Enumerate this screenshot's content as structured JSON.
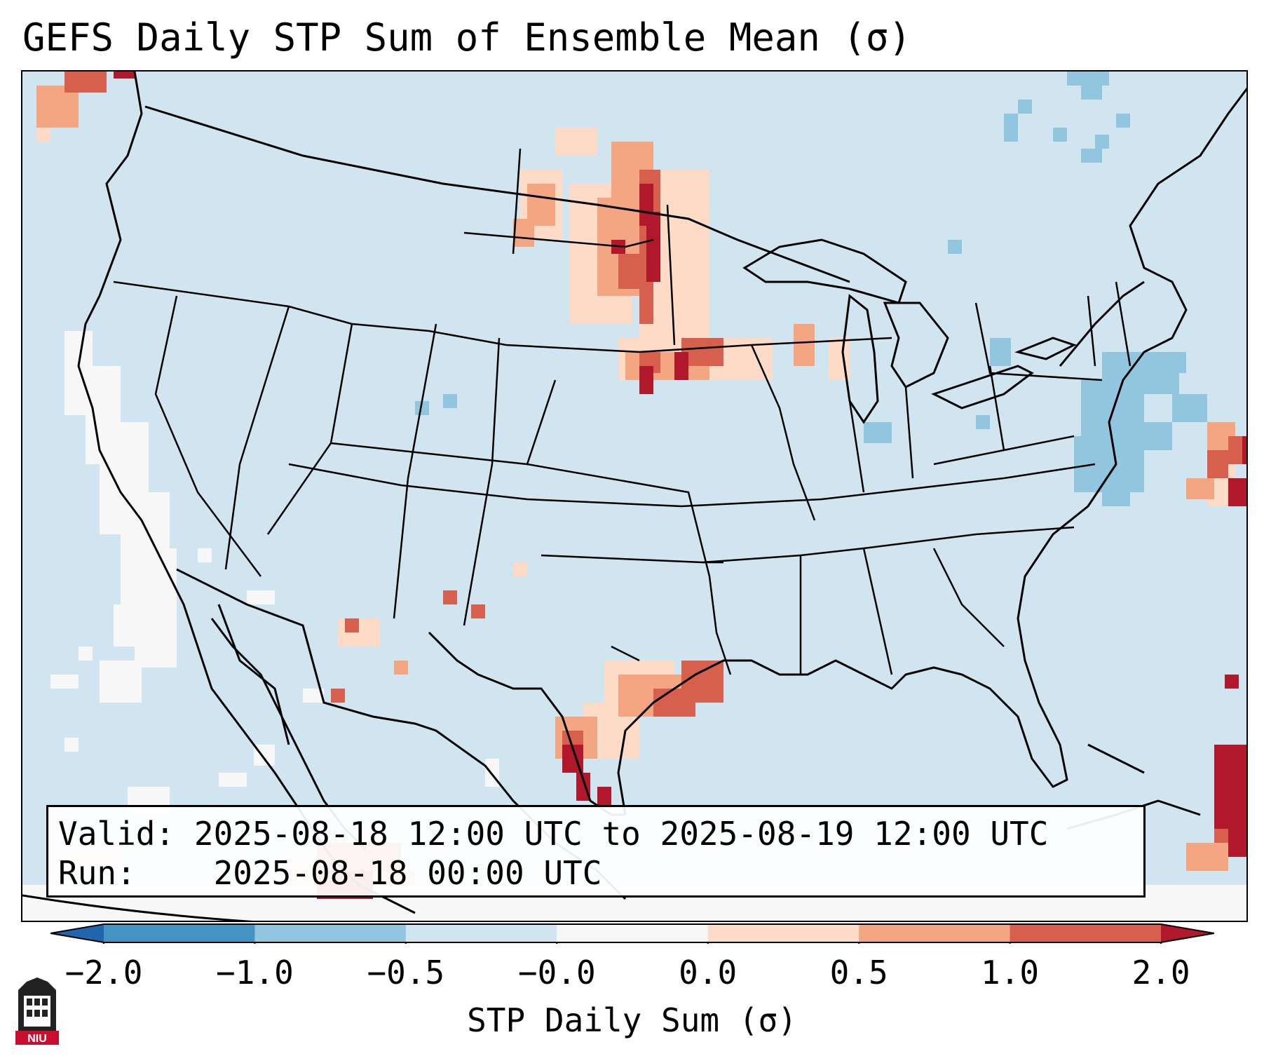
{
  "title": "GEFS Daily STP Sum of Ensemble Mean (σ)",
  "info": {
    "valid_label": "Valid:",
    "valid_text": "2025-08-18 12:00 UTC to 2025-08-19 12:00 UTC",
    "run_label": "Run:",
    "run_text": "2025-08-18 00:00 UTC"
  },
  "colorbar": {
    "label": "STP Daily Sum (σ)",
    "ticks": [
      "−2.0",
      "−1.0",
      "−0.5",
      "−0.0",
      "0.0",
      "0.5",
      "1.0",
      "2.0"
    ],
    "colors": [
      "#2166ac",
      "#4393c3",
      "#92c5de",
      "#d1e5f0",
      "#f7f7f7",
      "#fddbc7",
      "#f4a582",
      "#d6604d",
      "#b2182b"
    ]
  },
  "logo": {
    "text": "NIU",
    "icon": "university-logo-icon"
  },
  "map": {
    "icon": "stp-anomaly-map",
    "background_color": "#d1e5f0",
    "anomaly_regions": [
      {
        "name": "northern-plains-dakotas",
        "category": "positive",
        "max_sigma": 2.0
      },
      {
        "name": "nebraska-iowa",
        "category": "positive",
        "max_sigma": 2.0
      },
      {
        "name": "texas-gulf-coast",
        "category": "positive",
        "max_sigma": 1.0
      },
      {
        "name": "south-texas-coast",
        "category": "positive",
        "max_sigma": 2.0
      },
      {
        "name": "northern-mexico",
        "category": "positive",
        "max_sigma": 2.0
      },
      {
        "name": "western-atlantic",
        "category": "positive",
        "max_sigma": 2.0
      },
      {
        "name": "caribbean",
        "category": "positive",
        "max_sigma": 2.0
      },
      {
        "name": "pacific-northwest-coast",
        "category": "positive",
        "max_sigma": 2.0
      },
      {
        "name": "mid-atlantic-coast",
        "category": "negative",
        "max_sigma": -0.5
      },
      {
        "name": "california-coast",
        "category": "neutral",
        "max_sigma": 0.0
      }
    ]
  }
}
